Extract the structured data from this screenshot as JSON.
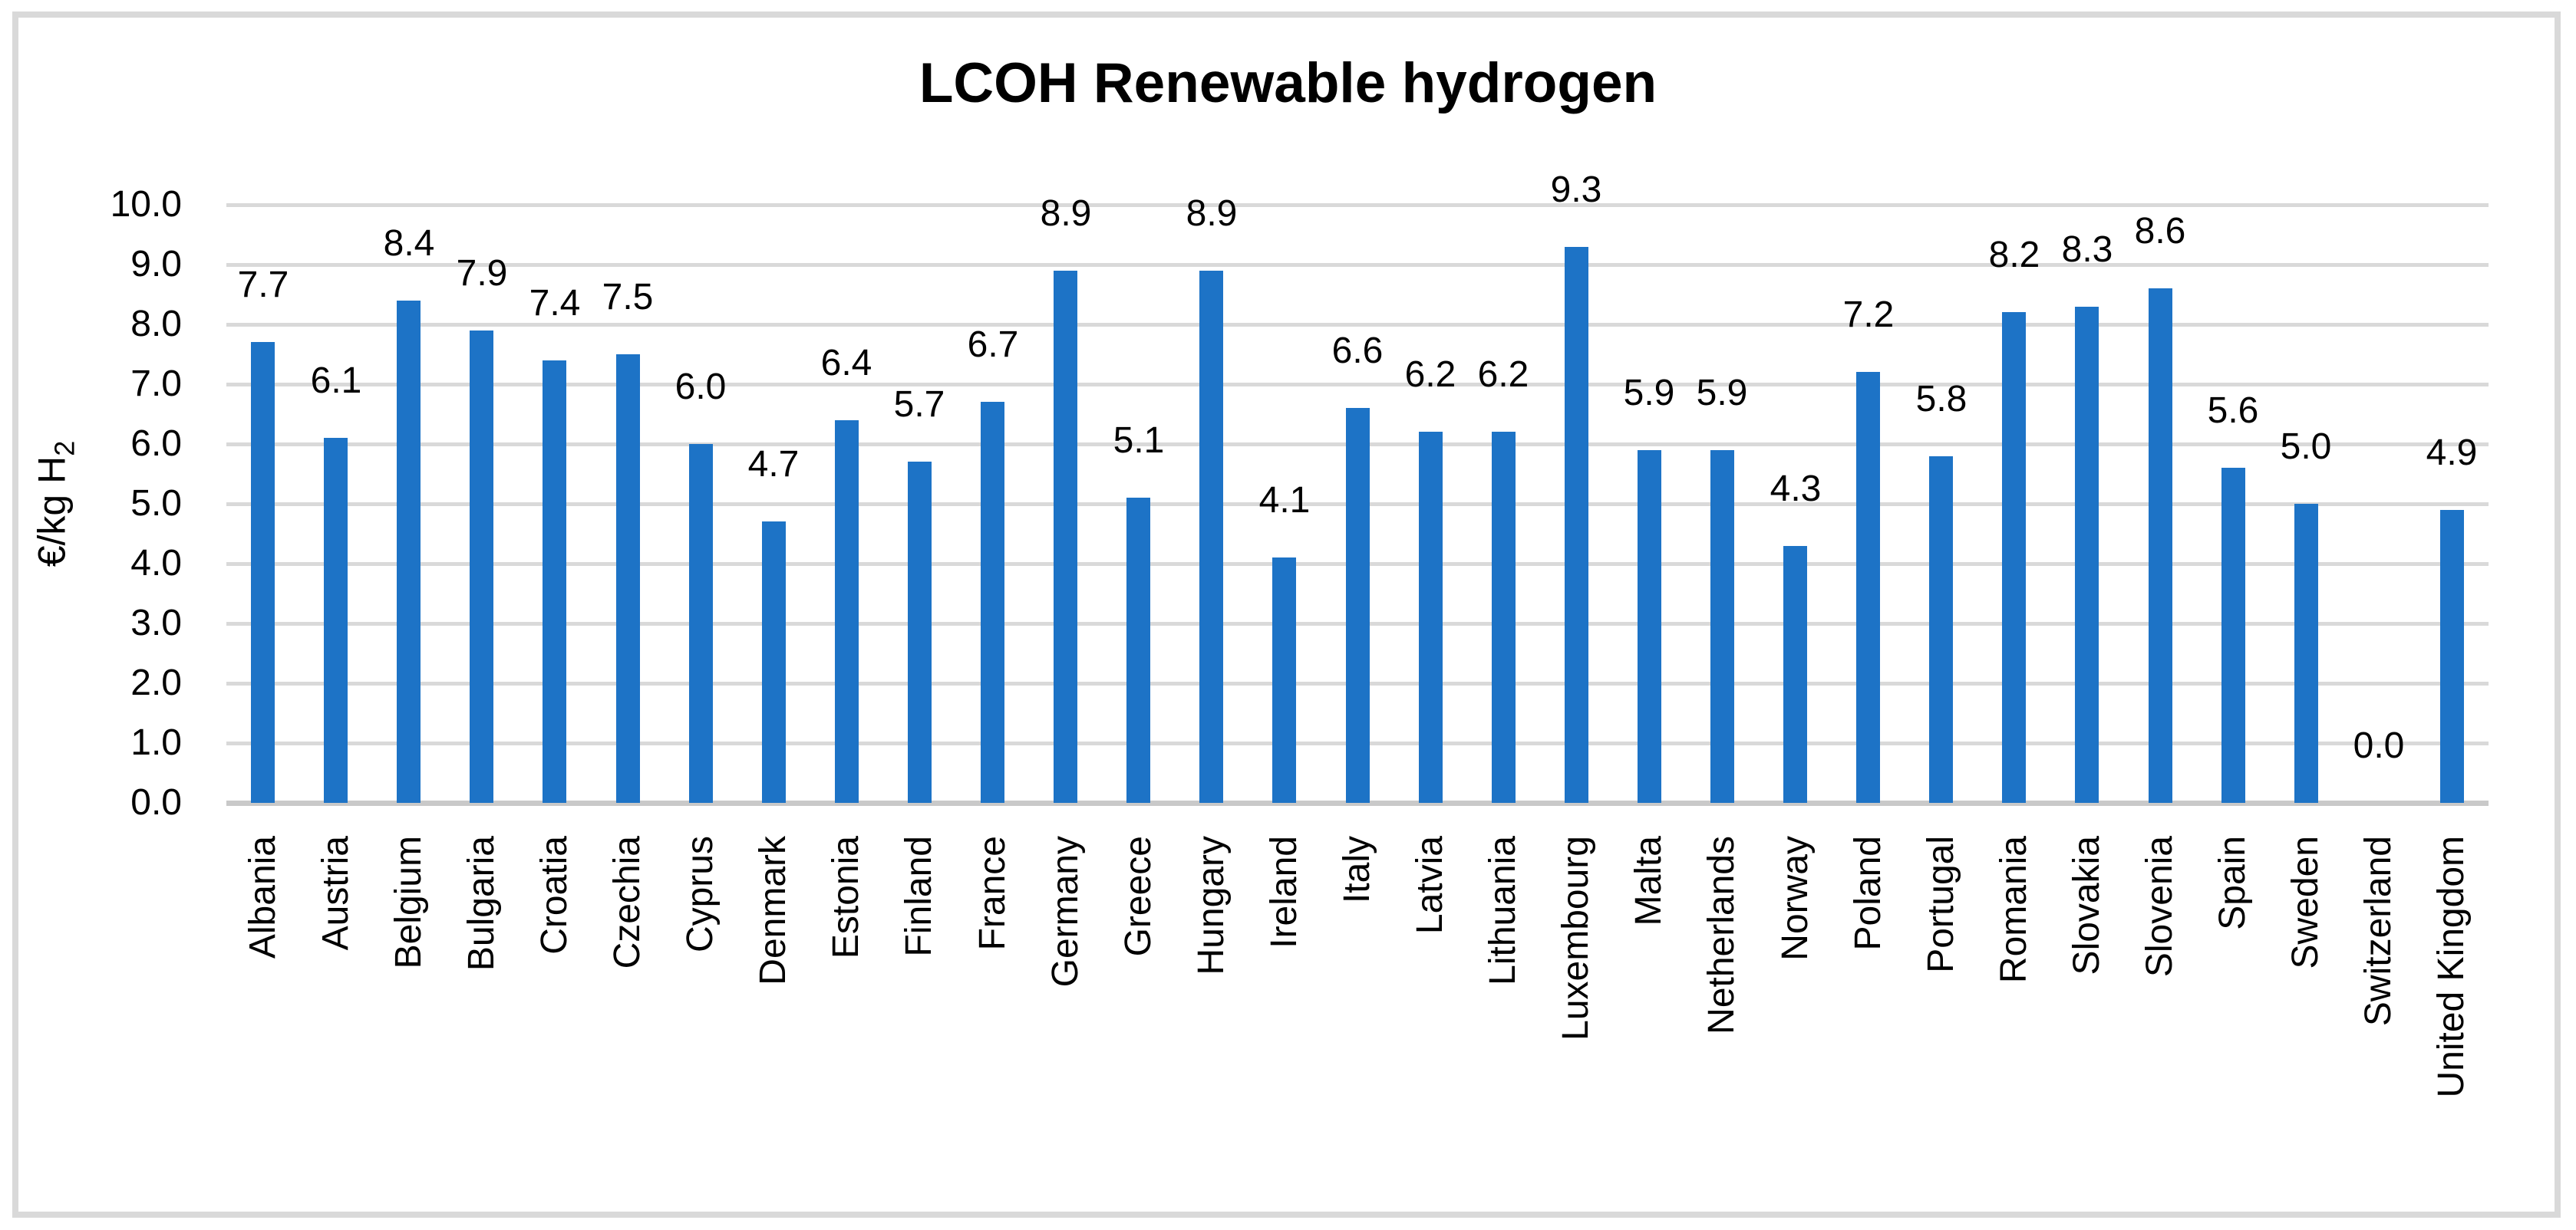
{
  "chart_data": {
    "type": "bar",
    "title": "LCOH Renewable hydrogen",
    "ylabel": "€/kg H2",
    "ylabel_main": "€/kg H",
    "ylabel_sub": "2",
    "xlabel": "",
    "ylim": [
      0,
      10
    ],
    "ytick_labels": [
      "0.0",
      "1.0",
      "2.0",
      "3.0",
      "4.0",
      "5.0",
      "6.0",
      "7.0",
      "8.0",
      "9.0",
      "10.0"
    ],
    "grid": true,
    "legend": "none",
    "data_label_decimals": 1,
    "bar_color": "#1D73C6",
    "gridline_color": "#D9D9D9",
    "axis_line_color": "#C9C9C9",
    "figure_border_color": "#D9D9D9",
    "text_color": "#000000",
    "categories": [
      "Albania",
      "Austria",
      "Belgium",
      "Bulgaria",
      "Croatia",
      "Czechia",
      "Cyprus",
      "Denmark",
      "Estonia",
      "Finland",
      "France",
      "Germany",
      "Greece",
      "Hungary",
      "Ireland",
      "Italy",
      "Latvia",
      "Lithuania",
      "Luxembourg",
      "Malta",
      "Netherlands",
      "Norway",
      "Poland",
      "Portugal",
      "Romania",
      "Slovakia",
      "Slovenia",
      "Spain",
      "Sweden",
      "Switzerland",
      "United Kingdom"
    ],
    "values": [
      7.7,
      6.1,
      8.4,
      7.9,
      7.4,
      7.5,
      6.0,
      4.7,
      6.4,
      5.7,
      6.7,
      8.9,
      5.1,
      8.9,
      4.1,
      6.6,
      6.2,
      6.2,
      9.3,
      5.9,
      5.9,
      4.3,
      7.2,
      5.8,
      8.2,
      8.3,
      8.6,
      5.6,
      5.0,
      0.0,
      4.9
    ]
  }
}
